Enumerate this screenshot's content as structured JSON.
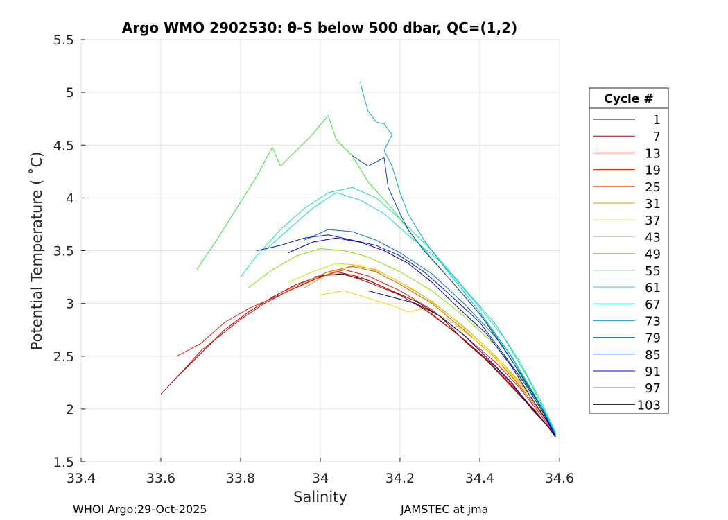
{
  "chart_data": {
    "type": "line",
    "title": "Argo WMO 2902530: θ-S below 500 dbar,  QC=(1,2)",
    "xlabel": "Salinity",
    "ylabel": "Potential Temperature ( ˚C)",
    "xlim": [
      33.4,
      34.6
    ],
    "ylim": [
      1.5,
      5.5
    ],
    "xticks": [
      33.4,
      33.6,
      33.8,
      34,
      34.2,
      34.4,
      34.6
    ],
    "xtick_labels": [
      "33.4",
      "33.6",
      "33.8",
      "34",
      "34.2",
      "34.4",
      "34.6"
    ],
    "yticks": [
      1.5,
      2,
      2.5,
      3,
      3.5,
      4,
      4.5,
      5,
      5.5
    ],
    "ytick_labels": [
      "1.5",
      "2",
      "2.5",
      "3",
      "3.5",
      "4",
      "4.5",
      "5",
      "5.5"
    ],
    "grid": true,
    "legend": {
      "title": "Cycle #",
      "placement": "right",
      "entries": [
        {
          "label": "1",
          "color": "#3a0000"
        },
        {
          "label": "7",
          "color": "#a30000"
        },
        {
          "label": "13",
          "color": "#d00000"
        },
        {
          "label": "19",
          "color": "#e61a00"
        },
        {
          "label": "25",
          "color": "#f24d00"
        },
        {
          "label": "31",
          "color": "#f29a00"
        },
        {
          "label": "37",
          "color": "#f2da00"
        },
        {
          "label": "43",
          "color": "#cce600"
        },
        {
          "label": "49",
          "color": "#80e600"
        },
        {
          "label": "55",
          "color": "#33e633"
        },
        {
          "label": "61",
          "color": "#1ae699"
        },
        {
          "label": "67",
          "color": "#14d6d6"
        },
        {
          "label": "73",
          "color": "#0aa6cc"
        },
        {
          "label": "79",
          "color": "#0073a6"
        },
        {
          "label": "85",
          "color": "#0040c8"
        },
        {
          "label": "91",
          "color": "#0010cc"
        },
        {
          "label": "97",
          "color": "#000a8c"
        },
        {
          "label": "103",
          "color": "#000099"
        }
      ]
    },
    "series": [
      {
        "name": "1",
        "color": "#3a0000",
        "points": [
          [
            33.98,
            3.25
          ],
          [
            34.05,
            3.28
          ],
          [
            34.12,
            3.22
          ],
          [
            34.18,
            3.12
          ],
          [
            34.24,
            3.02
          ],
          [
            34.3,
            2.88
          ],
          [
            34.36,
            2.65
          ],
          [
            34.42,
            2.45
          ],
          [
            34.47,
            2.25
          ],
          [
            34.52,
            2.05
          ],
          [
            34.56,
            1.88
          ],
          [
            34.59,
            1.74
          ]
        ]
      },
      {
        "name": "7",
        "color": "#a30000",
        "points": [
          [
            33.6,
            2.14
          ],
          [
            33.64,
            2.3
          ],
          [
            33.68,
            2.45
          ],
          [
            33.72,
            2.6
          ],
          [
            33.76,
            2.75
          ],
          [
            33.82,
            2.92
          ],
          [
            33.88,
            3.06
          ],
          [
            33.94,
            3.18
          ],
          [
            34.0,
            3.26
          ],
          [
            34.06,
            3.28
          ],
          [
            34.12,
            3.2
          ],
          [
            34.2,
            3.08
          ],
          [
            34.28,
            2.9
          ],
          [
            34.36,
            2.66
          ],
          [
            34.44,
            2.4
          ],
          [
            34.5,
            2.15
          ],
          [
            34.55,
            1.93
          ],
          [
            34.59,
            1.74
          ]
        ]
      },
      {
        "name": "13",
        "color": "#d00000",
        "points": [
          [
            33.62,
            2.22
          ],
          [
            33.66,
            2.38
          ],
          [
            33.7,
            2.55
          ],
          [
            33.75,
            2.7
          ],
          [
            33.8,
            2.85
          ],
          [
            33.86,
            3.0
          ],
          [
            33.92,
            3.12
          ],
          [
            33.98,
            3.22
          ],
          [
            34.04,
            3.3
          ],
          [
            34.1,
            3.25
          ],
          [
            34.18,
            3.12
          ],
          [
            34.26,
            2.95
          ],
          [
            34.34,
            2.72
          ],
          [
            34.42,
            2.46
          ],
          [
            34.48,
            2.22
          ],
          [
            34.54,
            1.98
          ],
          [
            34.59,
            1.74
          ]
        ]
      },
      {
        "name": "19",
        "color": "#e61a00",
        "points": [
          [
            33.64,
            2.5
          ],
          [
            33.7,
            2.62
          ],
          [
            33.76,
            2.82
          ],
          [
            33.82,
            2.95
          ],
          [
            33.88,
            3.05
          ],
          [
            33.94,
            3.15
          ],
          [
            34.0,
            3.25
          ],
          [
            34.06,
            3.32
          ],
          [
            34.12,
            3.26
          ],
          [
            34.2,
            3.12
          ],
          [
            34.28,
            2.94
          ],
          [
            34.36,
            2.7
          ],
          [
            34.44,
            2.44
          ],
          [
            34.5,
            2.2
          ],
          [
            34.55,
            1.96
          ],
          [
            34.59,
            1.74
          ]
        ]
      },
      {
        "name": "25",
        "color": "#f24d00",
        "points": [
          [
            33.9,
            3.1
          ],
          [
            33.96,
            3.2
          ],
          [
            34.02,
            3.3
          ],
          [
            34.08,
            3.35
          ],
          [
            34.14,
            3.3
          ],
          [
            34.2,
            3.18
          ],
          [
            34.28,
            3.0
          ],
          [
            34.36,
            2.75
          ],
          [
            34.44,
            2.48
          ],
          [
            34.5,
            2.22
          ],
          [
            34.55,
            1.98
          ],
          [
            34.59,
            1.75
          ]
        ]
      },
      {
        "name": "31",
        "color": "#f29a00",
        "points": [
          [
            33.96,
            3.15
          ],
          [
            34.02,
            3.28
          ],
          [
            34.08,
            3.36
          ],
          [
            34.14,
            3.32
          ],
          [
            34.2,
            3.2
          ],
          [
            34.28,
            3.02
          ],
          [
            34.36,
            2.78
          ],
          [
            34.44,
            2.5
          ],
          [
            34.5,
            2.25
          ],
          [
            34.55,
            2.0
          ],
          [
            34.59,
            1.76
          ]
        ]
      },
      {
        "name": "37",
        "color": "#f2da00",
        "points": [
          [
            34.0,
            3.08
          ],
          [
            34.06,
            3.12
          ],
          [
            34.12,
            3.05
          ],
          [
            34.18,
            2.98
          ],
          [
            34.22,
            2.92
          ],
          [
            34.26,
            2.95
          ],
          [
            34.32,
            2.85
          ],
          [
            34.4,
            2.62
          ],
          [
            34.46,
            2.4
          ],
          [
            34.52,
            2.15
          ],
          [
            34.56,
            1.95
          ],
          [
            34.59,
            1.76
          ]
        ]
      },
      {
        "name": "43",
        "color": "#cce600",
        "points": [
          [
            33.92,
            3.2
          ],
          [
            33.98,
            3.3
          ],
          [
            34.04,
            3.38
          ],
          [
            34.1,
            3.36
          ],
          [
            34.16,
            3.28
          ],
          [
            34.24,
            3.12
          ],
          [
            34.32,
            2.9
          ],
          [
            34.4,
            2.64
          ],
          [
            34.46,
            2.42
          ],
          [
            34.52,
            2.18
          ],
          [
            34.56,
            1.96
          ],
          [
            34.59,
            1.76
          ]
        ]
      },
      {
        "name": "49",
        "color": "#80e600",
        "points": [
          [
            33.82,
            3.15
          ],
          [
            33.88,
            3.32
          ],
          [
            33.94,
            3.45
          ],
          [
            34.0,
            3.52
          ],
          [
            34.06,
            3.5
          ],
          [
            34.12,
            3.44
          ],
          [
            34.2,
            3.3
          ],
          [
            34.28,
            3.12
          ],
          [
            34.36,
            2.88
          ],
          [
            34.44,
            2.6
          ],
          [
            34.5,
            2.32
          ],
          [
            34.55,
            2.05
          ],
          [
            34.59,
            1.77
          ]
        ]
      },
      {
        "name": "55",
        "color": "#33e633",
        "points": [
          [
            33.69,
            3.32
          ],
          [
            33.74,
            3.6
          ],
          [
            33.79,
            3.9
          ],
          [
            33.84,
            4.2
          ],
          [
            33.88,
            4.48
          ],
          [
            33.9,
            4.3
          ],
          [
            33.94,
            4.45
          ],
          [
            33.98,
            4.6
          ],
          [
            34.02,
            4.78
          ],
          [
            34.04,
            4.55
          ],
          [
            34.08,
            4.4
          ],
          [
            34.12,
            4.15
          ],
          [
            34.18,
            3.9
          ],
          [
            34.24,
            3.6
          ],
          [
            34.32,
            3.25
          ],
          [
            34.4,
            2.9
          ],
          [
            34.48,
            2.5
          ],
          [
            34.54,
            2.12
          ],
          [
            34.59,
            1.78
          ]
        ]
      },
      {
        "name": "61",
        "color": "#1ae699",
        "points": [
          [
            33.8,
            3.25
          ],
          [
            33.84,
            3.45
          ],
          [
            33.9,
            3.7
          ],
          [
            33.96,
            3.9
          ],
          [
            34.02,
            4.05
          ],
          [
            34.08,
            4.1
          ],
          [
            34.14,
            4.0
          ],
          [
            34.2,
            3.8
          ],
          [
            34.28,
            3.5
          ],
          [
            34.36,
            3.15
          ],
          [
            34.44,
            2.8
          ],
          [
            34.5,
            2.45
          ],
          [
            34.55,
            2.1
          ],
          [
            34.59,
            1.78
          ]
        ]
      },
      {
        "name": "67",
        "color": "#14d6d6",
        "points": [
          [
            33.86,
            3.5
          ],
          [
            33.92,
            3.7
          ],
          [
            33.98,
            3.9
          ],
          [
            34.04,
            4.05
          ],
          [
            34.1,
            3.98
          ],
          [
            34.16,
            3.85
          ],
          [
            34.22,
            3.65
          ],
          [
            34.3,
            3.4
          ],
          [
            34.38,
            3.05
          ],
          [
            34.46,
            2.68
          ],
          [
            34.52,
            2.3
          ],
          [
            34.56,
            2.0
          ],
          [
            34.59,
            1.76
          ]
        ]
      },
      {
        "name": "73",
        "color": "#0aa6cc",
        "points": [
          [
            34.1,
            5.1
          ],
          [
            34.11,
            4.95
          ],
          [
            34.12,
            4.82
          ],
          [
            34.14,
            4.72
          ],
          [
            34.16,
            4.7
          ],
          [
            34.18,
            4.6
          ],
          [
            34.16,
            4.45
          ],
          [
            34.18,
            4.3
          ],
          [
            34.2,
            4.05
          ],
          [
            34.22,
            3.85
          ],
          [
            34.26,
            3.6
          ],
          [
            34.32,
            3.3
          ],
          [
            34.4,
            2.92
          ],
          [
            34.47,
            2.55
          ],
          [
            34.53,
            2.18
          ],
          [
            34.59,
            1.76
          ]
        ]
      },
      {
        "name": "79",
        "color": "#0073a6",
        "points": [
          [
            33.96,
            3.6
          ],
          [
            34.02,
            3.7
          ],
          [
            34.08,
            3.68
          ],
          [
            34.14,
            3.6
          ],
          [
            34.2,
            3.48
          ],
          [
            34.28,
            3.28
          ],
          [
            34.36,
            3.0
          ],
          [
            34.44,
            2.68
          ],
          [
            34.5,
            2.35
          ],
          [
            34.55,
            2.05
          ],
          [
            34.59,
            1.75
          ]
        ]
      },
      {
        "name": "85",
        "color": "#0040c8",
        "points": [
          [
            34.08,
            4.4
          ],
          [
            34.12,
            4.3
          ],
          [
            34.16,
            4.38
          ],
          [
            34.17,
            4.1
          ],
          [
            34.2,
            3.85
          ],
          [
            34.22,
            3.7
          ],
          [
            34.26,
            3.5
          ],
          [
            34.32,
            3.25
          ],
          [
            34.4,
            2.9
          ],
          [
            34.46,
            2.58
          ],
          [
            34.52,
            2.22
          ],
          [
            34.56,
            1.98
          ],
          [
            34.59,
            1.74
          ]
        ]
      },
      {
        "name": "91",
        "color": "#0010cc",
        "points": [
          [
            33.84,
            3.5
          ],
          [
            33.9,
            3.55
          ],
          [
            33.96,
            3.62
          ],
          [
            34.02,
            3.65
          ],
          [
            34.08,
            3.6
          ],
          [
            34.14,
            3.55
          ],
          [
            34.2,
            3.45
          ],
          [
            34.26,
            3.3
          ],
          [
            34.32,
            3.1
          ],
          [
            34.4,
            2.82
          ],
          [
            34.46,
            2.52
          ],
          [
            34.52,
            2.2
          ],
          [
            34.56,
            1.96
          ],
          [
            34.59,
            1.74
          ]
        ]
      },
      {
        "name": "97",
        "color": "#000a8c",
        "points": [
          [
            34.12,
            3.12
          ],
          [
            34.18,
            3.06
          ],
          [
            34.24,
            3.0
          ],
          [
            34.3,
            2.88
          ],
          [
            34.36,
            2.7
          ],
          [
            34.42,
            2.48
          ],
          [
            34.48,
            2.25
          ],
          [
            34.53,
            2.0
          ],
          [
            34.57,
            1.84
          ],
          [
            34.59,
            1.73
          ]
        ]
      },
      {
        "name": "103",
        "color": "#000099",
        "points": [
          [
            33.92,
            3.48
          ],
          [
            33.98,
            3.58
          ],
          [
            34.04,
            3.62
          ],
          [
            34.1,
            3.58
          ],
          [
            34.16,
            3.5
          ],
          [
            34.22,
            3.38
          ],
          [
            34.28,
            3.2
          ],
          [
            34.34,
            2.98
          ],
          [
            34.42,
            2.7
          ],
          [
            34.48,
            2.4
          ],
          [
            34.53,
            2.1
          ],
          [
            34.57,
            1.88
          ],
          [
            34.59,
            1.73
          ]
        ]
      }
    ]
  },
  "footer": {
    "left": "WHOI Argo:29-Oct-2025",
    "right": "JAMSTEC at jma"
  }
}
